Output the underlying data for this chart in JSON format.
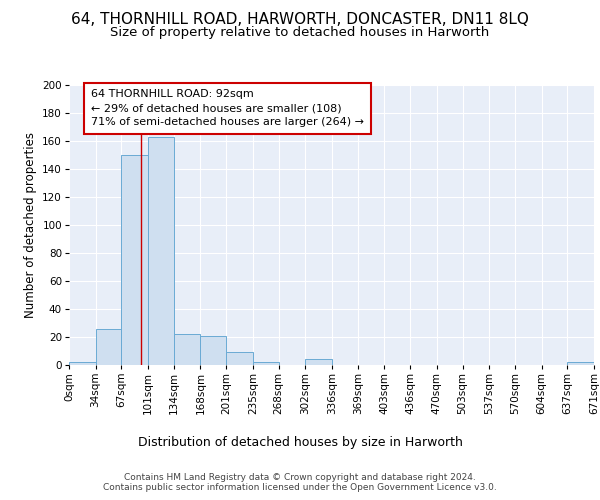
{
  "title": "64, THORNHILL ROAD, HARWORTH, DONCASTER, DN11 8LQ",
  "subtitle": "Size of property relative to detached houses in Harworth",
  "xlabel": "Distribution of detached houses by size in Harworth",
  "ylabel": "Number of detached properties",
  "bin_edges": [
    0,
    34,
    67,
    101,
    134,
    168,
    201,
    235,
    268,
    302,
    336,
    369,
    403,
    436,
    470,
    503,
    537,
    570,
    604,
    637,
    671
  ],
  "bar_heights": [
    2,
    26,
    150,
    163,
    22,
    21,
    9,
    2,
    0,
    4,
    0,
    0,
    0,
    0,
    0,
    0,
    0,
    0,
    0,
    2
  ],
  "bar_color": "#cfdff0",
  "bar_edge_color": "#6aaad4",
  "bar_edge_width": 0.7,
  "red_line_x": 92,
  "red_line_color": "#cc0000",
  "ylim": [
    0,
    200
  ],
  "yticks": [
    0,
    20,
    40,
    60,
    80,
    100,
    120,
    140,
    160,
    180,
    200
  ],
  "annotation_text": "64 THORNHILL ROAD: 92sqm\n← 29% of detached houses are smaller (108)\n71% of semi-detached houses are larger (264) →",
  "annotation_box_color": "#ffffff",
  "annotation_box_edge_color": "#cc0000",
  "background_color": "#e8eef8",
  "footer_text": "Contains HM Land Registry data © Crown copyright and database right 2024.\nContains public sector information licensed under the Open Government Licence v3.0.",
  "title_fontsize": 11,
  "subtitle_fontsize": 9.5,
  "xlabel_fontsize": 9,
  "ylabel_fontsize": 8.5,
  "tick_fontsize": 7.5,
  "annotation_fontsize": 8,
  "footer_fontsize": 6.5
}
